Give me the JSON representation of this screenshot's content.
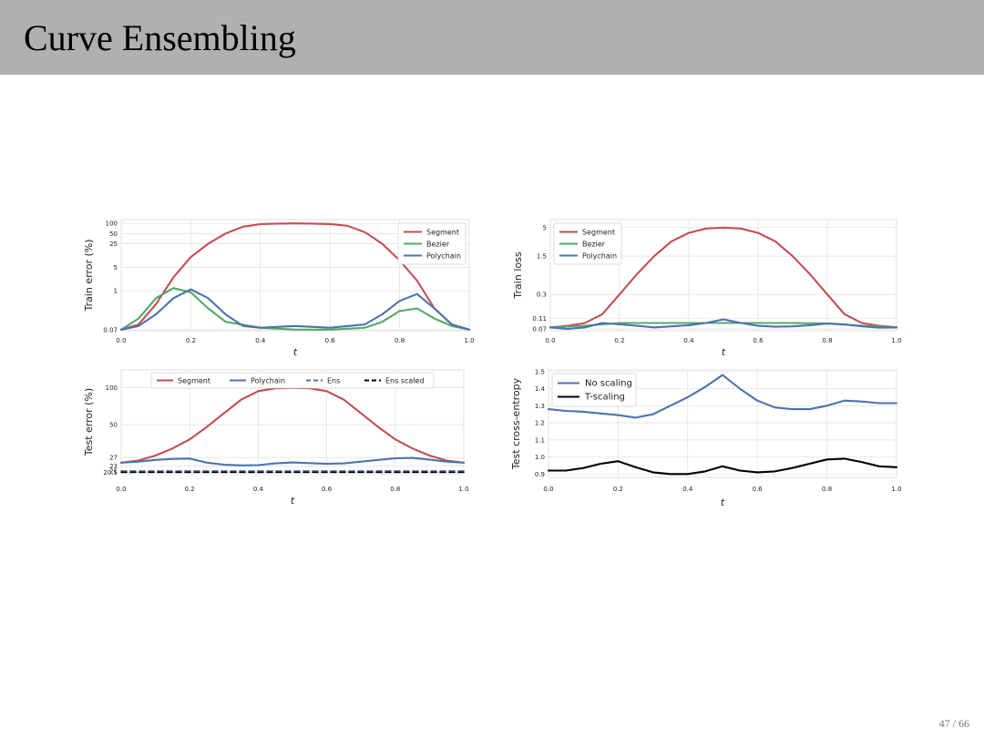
{
  "slide": {
    "title": "Curve Ensembling",
    "page_number": "47 / 66"
  },
  "colors": {
    "segment": "#c44e52",
    "bezier": "#55a868",
    "polychain": "#4c72b0",
    "black": "#000000"
  },
  "chart_data": [
    {
      "id": "train_error",
      "type": "line",
      "title": "",
      "xlabel": "t",
      "ylabel": "Train error (%)",
      "xlim": [
        0,
        1
      ],
      "yscale": "log",
      "ylim": [
        0.065,
        130
      ],
      "xticks": [
        "0.0",
        "0.2",
        "0.4",
        "0.6",
        "0.8",
        "1.0"
      ],
      "yticks": [
        {
          "value": 0.07,
          "label": "0.07"
        },
        {
          "value": 1,
          "label": "1"
        },
        {
          "value": 5,
          "label": "5"
        },
        {
          "value": 25,
          "label": "25"
        },
        {
          "value": 50,
          "label": "50"
        },
        {
          "value": 100,
          "label": "100"
        }
      ],
      "legend": {
        "position": "top-right",
        "size": "small"
      },
      "series": [
        {
          "name": "Segment",
          "color": "#c44e52",
          "dash": "solid",
          "x": [
            0,
            0.05,
            0.1,
            0.15,
            0.2,
            0.25,
            0.3,
            0.35,
            0.4,
            0.45,
            0.5,
            0.55,
            0.6,
            0.65,
            0.7,
            0.75,
            0.8,
            0.85,
            0.9,
            0.95,
            1
          ],
          "y": [
            0.07,
            0.1,
            0.4,
            2.5,
            10,
            25,
            50,
            80,
            95,
            99,
            100,
            99,
            96,
            85,
            55,
            25,
            8,
            2,
            0.3,
            0.1,
            0.07
          ]
        },
        {
          "name": "Bezier",
          "color": "#55a868",
          "dash": "solid",
          "x": [
            0,
            0.05,
            0.1,
            0.15,
            0.2,
            0.25,
            0.3,
            0.4,
            0.5,
            0.6,
            0.7,
            0.75,
            0.8,
            0.85,
            0.9,
            0.95,
            1
          ],
          "y": [
            0.07,
            0.15,
            0.6,
            1.2,
            0.9,
            0.3,
            0.12,
            0.08,
            0.07,
            0.07,
            0.08,
            0.12,
            0.25,
            0.3,
            0.15,
            0.09,
            0.07
          ]
        },
        {
          "name": "Polychain",
          "color": "#4c72b0",
          "dash": "solid",
          "x": [
            0,
            0.05,
            0.1,
            0.15,
            0.2,
            0.25,
            0.3,
            0.35,
            0.4,
            0.5,
            0.6,
            0.7,
            0.75,
            0.8,
            0.85,
            0.9,
            0.95,
            1
          ],
          "y": [
            0.07,
            0.09,
            0.2,
            0.6,
            1.1,
            0.6,
            0.2,
            0.09,
            0.08,
            0.09,
            0.08,
            0.1,
            0.2,
            0.5,
            0.8,
            0.3,
            0.1,
            0.07
          ]
        }
      ]
    },
    {
      "id": "train_loss",
      "type": "line",
      "title": "",
      "xlabel": "t",
      "ylabel": "Train loss",
      "xlim": [
        0,
        1
      ],
      "yscale": "log",
      "ylim": [
        0.065,
        7
      ],
      "xticks": [
        "0.0",
        "0.2",
        "0.4",
        "0.6",
        "0.8",
        "1.0"
      ],
      "yticks": [
        {
          "value": 0.07,
          "label": "0.07"
        },
        {
          "value": 0.11,
          "label": "0.11"
        },
        {
          "value": 0.3,
          "label": "0.3"
        },
        {
          "value": 1.5,
          "label": "1.5"
        },
        {
          "value": 5,
          "label": "5"
        }
      ],
      "legend": {
        "position": "top-left",
        "size": "small"
      },
      "series": [
        {
          "name": "Segment",
          "color": "#c44e52",
          "dash": "solid",
          "x": [
            0,
            0.05,
            0.1,
            0.15,
            0.2,
            0.25,
            0.3,
            0.35,
            0.4,
            0.45,
            0.5,
            0.55,
            0.6,
            0.65,
            0.7,
            0.75,
            0.8,
            0.85,
            0.9,
            0.95,
            1
          ],
          "y": [
            0.075,
            0.08,
            0.09,
            0.13,
            0.3,
            0.7,
            1.5,
            2.8,
            4.0,
            4.8,
            5.0,
            4.8,
            4.0,
            2.8,
            1.5,
            0.7,
            0.3,
            0.13,
            0.09,
            0.08,
            0.075
          ]
        },
        {
          "name": "Bezier",
          "color": "#55a868",
          "dash": "solid",
          "x": [
            0,
            0.1,
            0.2,
            0.3,
            0.4,
            0.5,
            0.6,
            0.7,
            0.8,
            0.9,
            1
          ],
          "y": [
            0.075,
            0.08,
            0.09,
            0.09,
            0.09,
            0.09,
            0.09,
            0.09,
            0.088,
            0.08,
            0.075
          ]
        },
        {
          "name": "Polychain",
          "color": "#4c72b0",
          "dash": "solid",
          "x": [
            0,
            0.05,
            0.1,
            0.15,
            0.2,
            0.25,
            0.3,
            0.35,
            0.4,
            0.45,
            0.5,
            0.55,
            0.6,
            0.65,
            0.7,
            0.75,
            0.8,
            0.85,
            0.9,
            0.95,
            1
          ],
          "y": [
            0.075,
            0.07,
            0.075,
            0.09,
            0.085,
            0.08,
            0.075,
            0.078,
            0.082,
            0.09,
            0.105,
            0.09,
            0.08,
            0.077,
            0.078,
            0.082,
            0.088,
            0.085,
            0.078,
            0.074,
            0.075
          ]
        }
      ]
    },
    {
      "id": "test_error",
      "type": "line",
      "title": "",
      "xlabel": "t",
      "ylabel": "Test error (%)",
      "xlim": [
        0,
        1
      ],
      "yscale": "log",
      "ylim": [
        19.9,
        140
      ],
      "xticks": [
        "0.0",
        "0.2",
        "0.4",
        "0.6",
        "0.8",
        "1.0"
      ],
      "yticks": [
        {
          "value": 20.5,
          "label": "20.5"
        },
        {
          "value": 21,
          "label": "21"
        },
        {
          "value": 23,
          "label": "23"
        },
        {
          "value": 27,
          "label": "27"
        },
        {
          "value": 50,
          "label": "50"
        },
        {
          "value": 100,
          "label": "100"
        }
      ],
      "legend": {
        "position": "top-center",
        "size": "small",
        "columns": 4
      },
      "series": [
        {
          "name": "Segment",
          "color": "#c44e52",
          "dash": "solid",
          "x": [
            0,
            0.05,
            0.1,
            0.15,
            0.2,
            0.25,
            0.3,
            0.35,
            0.4,
            0.45,
            0.5,
            0.55,
            0.6,
            0.65,
            0.7,
            0.75,
            0.8,
            0.85,
            0.9,
            0.95,
            1
          ],
          "y": [
            24.5,
            25.5,
            28,
            32,
            38,
            48,
            62,
            80,
            94,
            99,
            100,
            99,
            94,
            80,
            62,
            48,
            38,
            32,
            28,
            25.5,
            24.5
          ]
        },
        {
          "name": "Polychain",
          "color": "#4c72b0",
          "dash": "solid",
          "x": [
            0,
            0.05,
            0.1,
            0.15,
            0.2,
            0.25,
            0.3,
            0.35,
            0.4,
            0.45,
            0.5,
            0.55,
            0.6,
            0.65,
            0.7,
            0.75,
            0.8,
            0.85,
            0.9,
            0.95,
            1
          ],
          "y": [
            24.5,
            25,
            25.8,
            26.3,
            26.5,
            24.5,
            23.6,
            23.3,
            23.4,
            24.2,
            24.6,
            24.3,
            24,
            24.2,
            25,
            25.8,
            26.6,
            26.8,
            26,
            25,
            24.5
          ]
        },
        {
          "name": "Ens",
          "color": "#4c72b0",
          "dash": "dashed",
          "x": [
            0,
            1
          ],
          "y": [
            21,
            21
          ]
        },
        {
          "name": "Ens scaled",
          "color": "#000000",
          "dash": "dashed",
          "x": [
            0,
            1
          ],
          "y": [
            20.5,
            20.5
          ]
        }
      ]
    },
    {
      "id": "test_ce",
      "type": "line",
      "title": "",
      "xlabel": "t",
      "ylabel": "Test cross-entropy",
      "xlim": [
        0,
        1
      ],
      "yscale": "linear",
      "ylim": [
        0.88,
        1.51
      ],
      "xticks": [
        "0.0",
        "0.2",
        "0.4",
        "0.6",
        "0.8",
        "1.0"
      ],
      "yticks": [
        {
          "value": 0.9,
          "label": "0.9"
        },
        {
          "value": 1.0,
          "label": "1.0"
        },
        {
          "value": 1.1,
          "label": "1.1"
        },
        {
          "value": 1.2,
          "label": "1.2"
        },
        {
          "value": 1.3,
          "label": "1.3"
        },
        {
          "value": 1.4,
          "label": "1.4"
        },
        {
          "value": 1.5,
          "label": "1.5"
        }
      ],
      "legend": {
        "position": "top-left",
        "size": "large"
      },
      "series": [
        {
          "name": "No scaling",
          "color": "#4c72b0",
          "dash": "solid",
          "x": [
            0,
            0.05,
            0.1,
            0.15,
            0.2,
            0.25,
            0.3,
            0.35,
            0.4,
            0.45,
            0.5,
            0.55,
            0.6,
            0.65,
            0.7,
            0.75,
            0.8,
            0.85,
            0.9,
            0.95,
            1
          ],
          "y": [
            1.28,
            1.27,
            1.265,
            1.255,
            1.245,
            1.23,
            1.25,
            1.3,
            1.35,
            1.41,
            1.48,
            1.4,
            1.33,
            1.29,
            1.28,
            1.28,
            1.3,
            1.33,
            1.325,
            1.315,
            1.315
          ]
        },
        {
          "name": "T-scaling",
          "color": "#000000",
          "dash": "solid",
          "x": [
            0,
            0.05,
            0.1,
            0.15,
            0.2,
            0.25,
            0.3,
            0.35,
            0.4,
            0.45,
            0.5,
            0.55,
            0.6,
            0.65,
            0.7,
            0.75,
            0.8,
            0.85,
            0.9,
            0.95,
            1
          ],
          "y": [
            0.92,
            0.92,
            0.935,
            0.96,
            0.975,
            0.94,
            0.91,
            0.9,
            0.9,
            0.915,
            0.945,
            0.92,
            0.91,
            0.915,
            0.935,
            0.96,
            0.985,
            0.99,
            0.97,
            0.945,
            0.94
          ]
        }
      ]
    }
  ]
}
